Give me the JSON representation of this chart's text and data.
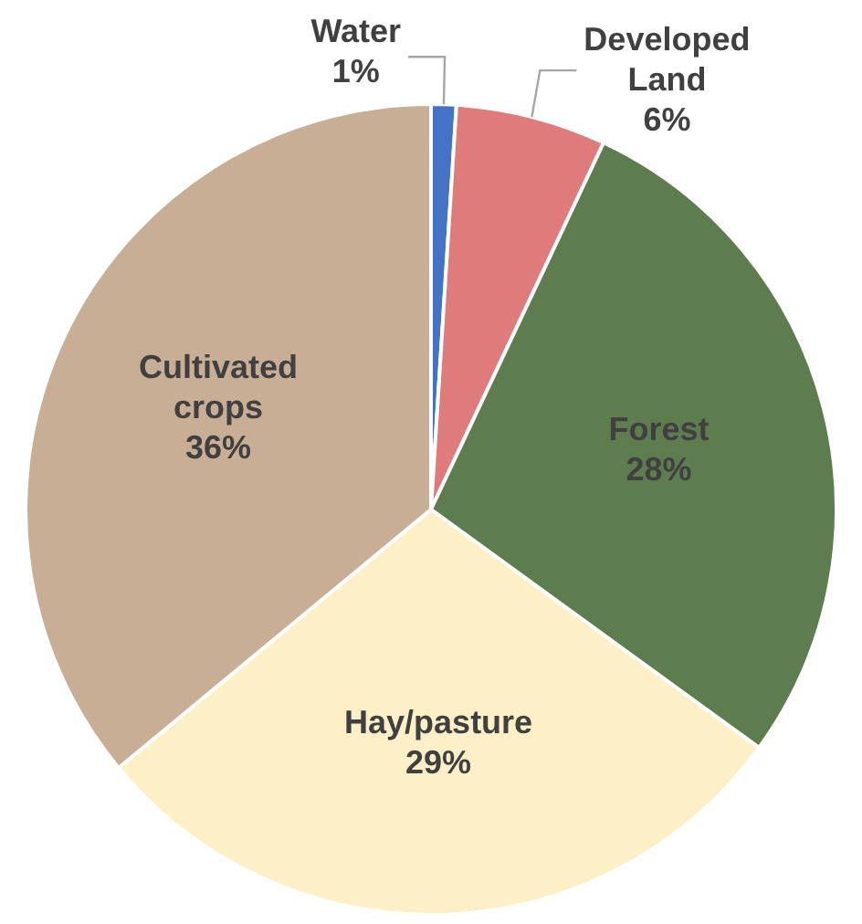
{
  "chart_data": {
    "type": "pie",
    "categories": [
      "Water",
      "Developed Land",
      "Forest",
      "Hay/pasture",
      "Cultivated crops"
    ],
    "values": [
      1,
      6,
      28,
      29,
      36
    ],
    "value_labels": [
      "1%",
      "6%",
      "28%",
      "29%",
      "36%"
    ],
    "colors": [
      "#4472c4",
      "#e07b7b",
      "#5e7d4f",
      "#fdefc6",
      "#c8ae94"
    ]
  }
}
